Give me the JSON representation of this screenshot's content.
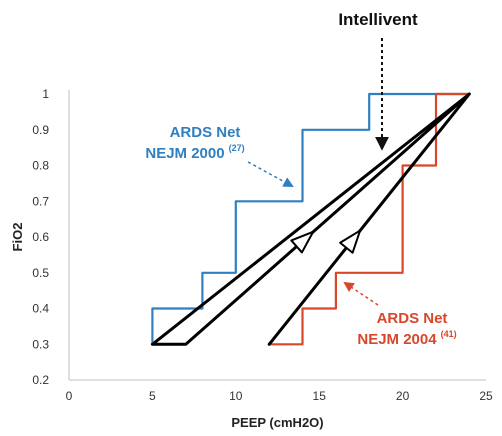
{
  "chart_data": {
    "type": "line",
    "xlabel": "PEEP (cmH2O)",
    "ylabel": "FiO2",
    "xlim": [
      0,
      25
    ],
    "ylim": [
      0.2,
      1
    ],
    "xticks": [
      0,
      5,
      10,
      15,
      20,
      25
    ],
    "yticks": [
      0.2,
      0.3,
      0.4,
      0.5,
      0.6,
      0.7,
      0.8,
      0.9,
      1.0
    ],
    "ytick_labels": [
      "0.2",
      "0.3",
      "0.4",
      "0.5",
      "0.6",
      "0.7",
      "0.8",
      "0.9",
      "1"
    ],
    "grid": false,
    "series": [
      {
        "color": "#2f7fc1",
        "shape": "step",
        "x": [
          5,
          5,
          8,
          8,
          10,
          10,
          14,
          14,
          18,
          18,
          24
        ],
        "y": [
          0.3,
          0.4,
          0.4,
          0.5,
          0.5,
          0.7,
          0.7,
          0.9,
          0.9,
          1.0,
          1.0
        ]
      },
      {
        "color": "#d9472b",
        "shape": "step",
        "x": [
          12,
          14,
          14,
          16,
          16,
          20,
          20,
          22,
          22,
          24
        ],
        "y": [
          0.3,
          0.3,
          0.4,
          0.4,
          0.5,
          0.5,
          0.8,
          0.8,
          1.0,
          1.0
        ]
      },
      {
        "color": "#000000",
        "shape": "polygon",
        "x": [
          5,
          7,
          24,
          12,
          24
        ],
        "y": [
          0.3,
          0.3,
          1.0,
          0.3,
          1.0
        ]
      }
    ],
    "annotations": [
      {
        "id": "blue",
        "lines": [
          "ARDS Net",
          "NEJM 2000"
        ],
        "sup": "(27)",
        "color": "#2f7fc1"
      },
      {
        "id": "red",
        "lines": [
          "ARDS Net",
          "NEJM 2004"
        ],
        "sup": "(41)",
        "color": "#d9472b"
      },
      {
        "id": "black",
        "lines": [
          "Intellivent"
        ],
        "color": "#111111"
      }
    ]
  }
}
